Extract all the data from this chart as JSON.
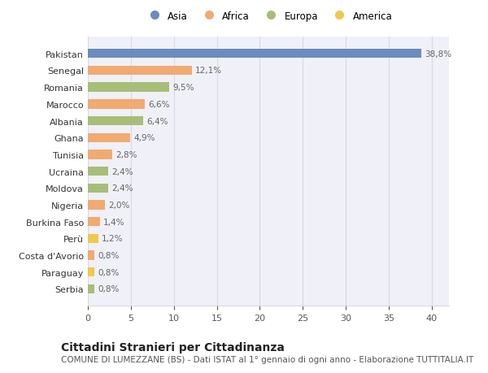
{
  "countries": [
    "Pakistan",
    "Senegal",
    "Romania",
    "Marocco",
    "Albania",
    "Ghana",
    "Tunisia",
    "Ucraina",
    "Moldova",
    "Nigeria",
    "Burkina Faso",
    "Perù",
    "Costa d'Avorio",
    "Paraguay",
    "Serbia"
  ],
  "values": [
    38.8,
    12.1,
    9.5,
    6.6,
    6.4,
    4.9,
    2.8,
    2.4,
    2.4,
    2.0,
    1.4,
    1.2,
    0.8,
    0.8,
    0.8
  ],
  "labels": [
    "38,8%",
    "12,1%",
    "9,5%",
    "6,6%",
    "6,4%",
    "4,9%",
    "2,8%",
    "2,4%",
    "2,4%",
    "2,0%",
    "1,4%",
    "1,2%",
    "0,8%",
    "0,8%",
    "0,8%"
  ],
  "continents": [
    "Asia",
    "Africa",
    "Europa",
    "Africa",
    "Europa",
    "Africa",
    "Africa",
    "Europa",
    "Europa",
    "Africa",
    "Africa",
    "America",
    "Africa",
    "America",
    "Europa"
  ],
  "colors": {
    "Asia": "#6b8cbe",
    "Africa": "#f0aa72",
    "Europa": "#a8be78",
    "America": "#f0c84a"
  },
  "xlim": [
    0,
    42
  ],
  "xticks": [
    0,
    5,
    10,
    15,
    20,
    25,
    30,
    35,
    40
  ],
  "title": "Cittadini Stranieri per Cittadinanza",
  "subtitle": "COMUNE DI LUMEZZANE (BS) - Dati ISTAT al 1° gennaio di ogni anno - Elaborazione TUTTITALIA.IT",
  "bg_color": "#ffffff",
  "plot_bg_color": "#f0f0f8",
  "grid_color": "#d8d8e8",
  "label_color": "#666666",
  "title_fontsize": 10,
  "subtitle_fontsize": 7.5,
  "bar_height": 0.55,
  "label_fontsize": 7.5,
  "ytick_fontsize": 8,
  "xtick_fontsize": 8
}
